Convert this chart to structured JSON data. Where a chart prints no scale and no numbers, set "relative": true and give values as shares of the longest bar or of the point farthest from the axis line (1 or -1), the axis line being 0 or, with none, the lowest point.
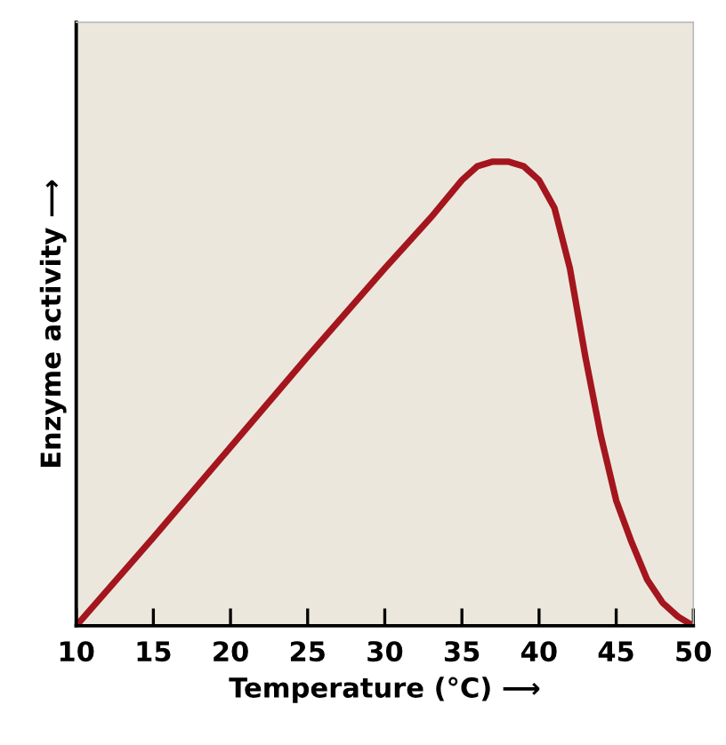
{
  "chart_data": {
    "type": "line",
    "xlabel": "Temperature (°C) ⟶",
    "ylabel": "Enzyme activity ⟶",
    "relative": true,
    "xlim": [
      10,
      50
    ],
    "xticks": [
      10,
      15,
      20,
      25,
      30,
      35,
      40,
      45,
      50
    ],
    "series": [
      {
        "color": "#a3161e",
        "x": [
          10,
          15,
          20,
          25,
          30,
          33,
          34,
          35,
          36,
          37,
          38,
          39,
          40,
          41,
          42,
          43,
          44,
          45,
          46,
          47,
          48,
          49,
          50
        ],
        "values": [
          0,
          0.19,
          0.385,
          0.58,
          0.77,
          0.88,
          0.92,
          0.96,
          0.99,
          1.0,
          1.0,
          0.99,
          0.96,
          0.9,
          0.77,
          0.58,
          0.41,
          0.27,
          0.18,
          0.1,
          0.05,
          0.02,
          0
        ]
      }
    ],
    "grid": false,
    "legend": false
  }
}
